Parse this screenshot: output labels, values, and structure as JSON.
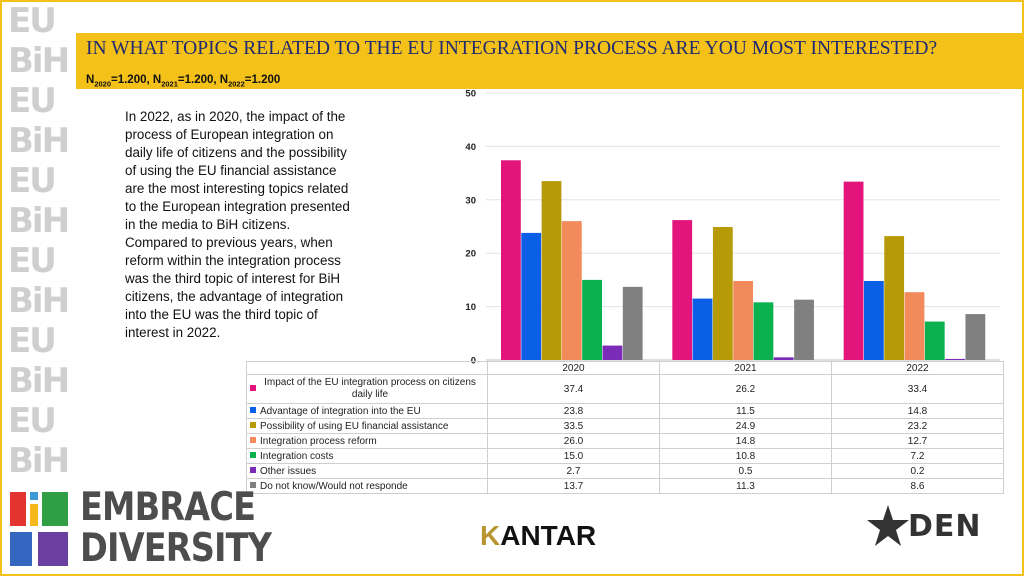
{
  "title": "IN WHAT TOPICS RELATED TO THE EU INTEGRATION PROCESS ARE YOU MOST INTERESTED?",
  "sample": {
    "n1_sub": "2020",
    "n1_val": "=1.200, ",
    "n2_sub": "2021",
    "n2_val": "=1.200, ",
    "n3_sub": "2022",
    "n3_val": "=1.200"
  },
  "description": "In 2022, as in 2020, the impact of the process of European integration on daily life of citizens and the possibility of using the EU financial assistance are the most interesting topics related to the European integration presented in the media to BiH citizens. Compared to previous years, when reform within the integration process was the third topic of interest for BiH citizens, the advantage of integration into the EU was the third topic of interest in 2022.",
  "chart_data": {
    "type": "bar",
    "categories": [
      "2020",
      "2021",
      "2022"
    ],
    "ylim": [
      0,
      50
    ],
    "yticks": [
      0,
      10,
      20,
      30,
      40,
      50
    ],
    "grid": true,
    "legend": "data table below chart",
    "series": [
      {
        "name": "Impact of the EU integration process on citizens daily life",
        "color": "#e3147c",
        "values": [
          37.4,
          26.2,
          33.4
        ]
      },
      {
        "name": "Advantage of integration into the EU",
        "color": "#0b5fe6",
        "values": [
          23.8,
          11.5,
          14.8
        ]
      },
      {
        "name": "Possibility of using EU financial assistance",
        "color": "#b79a07",
        "values": [
          33.5,
          24.9,
          23.2
        ]
      },
      {
        "name": "Integration process reform",
        "color": "#f28a5c",
        "values": [
          26.0,
          14.8,
          12.7
        ]
      },
      {
        "name": "Integration costs",
        "color": "#0bb14f",
        "values": [
          15.0,
          10.8,
          7.2
        ]
      },
      {
        "name": "Other issues",
        "color": "#7a2cb8",
        "values": [
          2.7,
          0.5,
          0.2
        ]
      },
      {
        "name": "Do not know/Would not responde",
        "color": "#808080",
        "values": [
          13.7,
          11.3,
          8.6
        ]
      }
    ],
    "table_values": [
      [
        "37.4",
        "26.2",
        "33.4"
      ],
      [
        "23.8",
        "11.5",
        "14.8"
      ],
      [
        "33.5",
        "24.9",
        "23.2"
      ],
      [
        "26.0",
        "14.8",
        "12.7"
      ],
      [
        "15.0",
        "10.8",
        "7.2"
      ],
      [
        "2.7",
        "0.5",
        "0.2"
      ],
      [
        "13.7",
        "11.3",
        "8.6"
      ]
    ]
  },
  "side_logo": {
    "letters": "EU BiH"
  },
  "brand": {
    "line1": "EMBRACE",
    "line2": "DIVERSITY"
  },
  "kantar": {
    "first": "K",
    "rest": "ANTAR"
  },
  "den": {
    "text": "DEN"
  }
}
